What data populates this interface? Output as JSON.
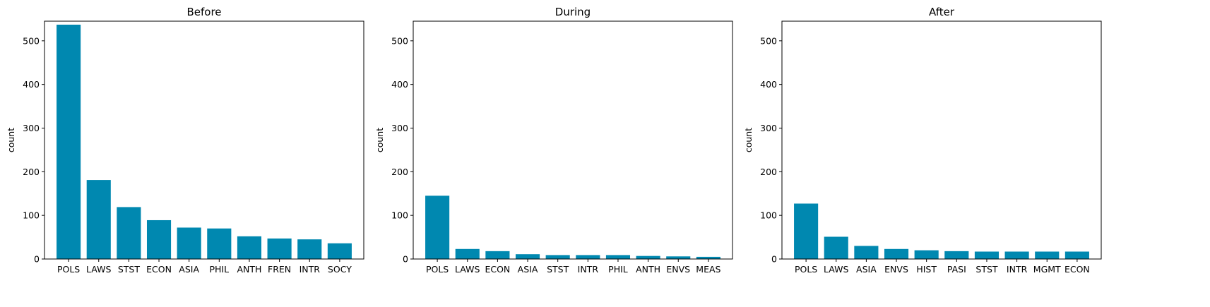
{
  "chart_data": [
    {
      "type": "bar",
      "title": "Before",
      "xlabel": "",
      "ylabel": "count",
      "ylim": [
        0,
        545
      ],
      "yticks": [
        0,
        100,
        200,
        300,
        400,
        500
      ],
      "bar_color": "#0088b0",
      "categories": [
        "POLS",
        "LAWS",
        "STST",
        "ECON",
        "ASIA",
        "PHIL",
        "ANTH",
        "FREN",
        "INTR",
        "SOCY"
      ],
      "values": [
        537,
        181,
        119,
        89,
        72,
        70,
        52,
        47,
        45,
        36
      ]
    },
    {
      "type": "bar",
      "title": "During",
      "xlabel": "",
      "ylabel": "count",
      "ylim": [
        0,
        545
      ],
      "yticks": [
        0,
        100,
        200,
        300,
        400,
        500
      ],
      "bar_color": "#0088b0",
      "categories": [
        "POLS",
        "LAWS",
        "ECON",
        "ASIA",
        "STST",
        "INTR",
        "PHIL",
        "ANTH",
        "ENVS",
        "MEAS"
      ],
      "values": [
        145,
        23,
        18,
        11,
        9,
        9,
        9,
        7,
        6,
        5
      ]
    },
    {
      "type": "bar",
      "title": "After",
      "xlabel": "",
      "ylabel": "count",
      "ylim": [
        0,
        545
      ],
      "yticks": [
        0,
        100,
        200,
        300,
        400,
        500
      ],
      "bar_color": "#0088b0",
      "categories": [
        "POLS",
        "LAWS",
        "ASIA",
        "ENVS",
        "HIST",
        "PASI",
        "STST",
        "INTR",
        "MGMT",
        "ECON"
      ],
      "values": [
        127,
        51,
        30,
        23,
        20,
        18,
        17,
        17,
        17,
        17
      ]
    }
  ]
}
